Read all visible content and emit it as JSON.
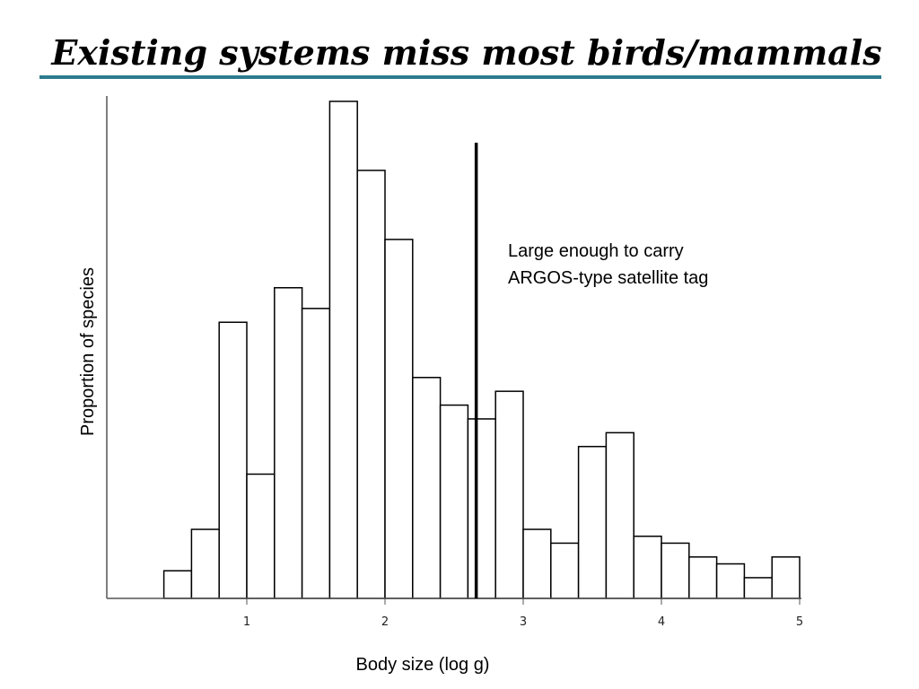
{
  "slide": {
    "title": "Existing systems miss most birds/mammals",
    "rule_color": "#2c7b8e"
  },
  "chart_data": {
    "type": "bar",
    "title": "",
    "xlabel": "Body size (log g)",
    "ylabel": "Proportion of species",
    "x_ticks": [
      1,
      2,
      3,
      4,
      5
    ],
    "xlim": [
      0.0,
      5.0
    ],
    "ylim": [
      0,
      36
    ],
    "bin_width": 0.2,
    "bins": [
      {
        "x0": 0.4,
        "x1": 0.6,
        "value": 2
      },
      {
        "x0": 0.6,
        "x1": 0.8,
        "value": 5
      },
      {
        "x0": 0.8,
        "x1": 1.0,
        "value": 20
      },
      {
        "x0": 1.0,
        "x1": 1.2,
        "value": 9
      },
      {
        "x0": 1.2,
        "x1": 1.4,
        "value": 22.5
      },
      {
        "x0": 1.4,
        "x1": 1.6,
        "value": 21
      },
      {
        "x0": 1.6,
        "x1": 1.8,
        "value": 36
      },
      {
        "x0": 1.8,
        "x1": 2.0,
        "value": 31
      },
      {
        "x0": 2.0,
        "x1": 2.2,
        "value": 26
      },
      {
        "x0": 2.2,
        "x1": 2.4,
        "value": 16
      },
      {
        "x0": 2.4,
        "x1": 2.6,
        "value": 14
      },
      {
        "x0": 2.6,
        "x1": 2.8,
        "value": 13
      },
      {
        "x0": 2.8,
        "x1": 3.0,
        "value": 15
      },
      {
        "x0": 3.0,
        "x1": 3.2,
        "value": 5
      },
      {
        "x0": 3.2,
        "x1": 3.4,
        "value": 4
      },
      {
        "x0": 3.4,
        "x1": 3.6,
        "value": 11
      },
      {
        "x0": 3.6,
        "x1": 3.8,
        "value": 12
      },
      {
        "x0": 3.8,
        "x1": 4.0,
        "value": 4.5
      },
      {
        "x0": 4.0,
        "x1": 4.2,
        "value": 4
      },
      {
        "x0": 4.2,
        "x1": 4.4,
        "value": 3
      },
      {
        "x0": 4.4,
        "x1": 4.6,
        "value": 2.5
      },
      {
        "x0": 4.6,
        "x1": 4.8,
        "value": 1.5
      },
      {
        "x0": 4.8,
        "x1": 5.0,
        "value": 3
      }
    ],
    "threshold": {
      "x": 2.66,
      "top_value": 33,
      "annotation_lines": [
        "Large enough to carry",
        "ARGOS-type satellite tag"
      ]
    },
    "grid": false,
    "legend": "none"
  }
}
